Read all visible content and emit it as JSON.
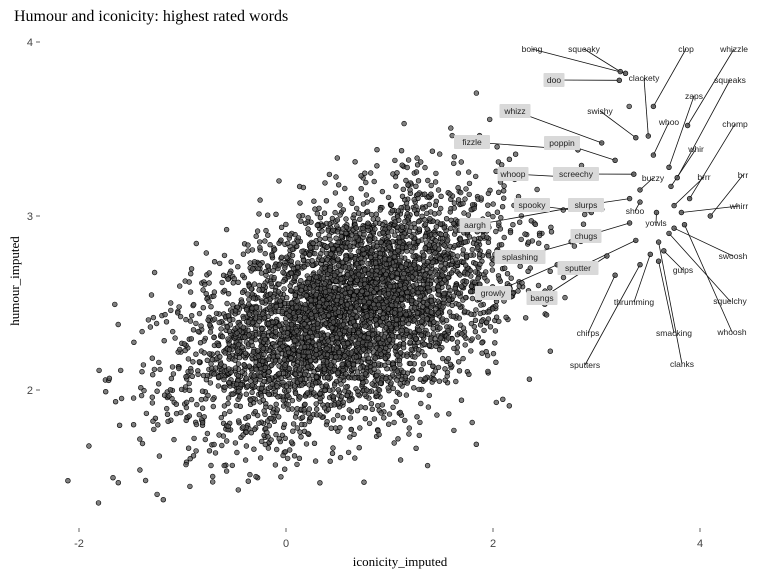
{
  "chart_data": {
    "type": "scatter",
    "title": "Humour and iconicity: highest rated words",
    "xlabel": "iconicity_imputed",
    "ylabel": "humour_imputed",
    "xlim": [
      -2.3,
      4.6
    ],
    "ylim": [
      1.25,
      4.1
    ],
    "xticks": [
      -2,
      0,
      2,
      4
    ],
    "yticks": [
      2,
      3,
      4
    ],
    "grid": false,
    "point_color": "#555555",
    "point_edge": "#000000",
    "bulk_cloud": {
      "center": [
        0.6,
        2.45
      ],
      "sd": [
        0.75,
        0.33
      ],
      "correlation": 0.45,
      "n_points": 4800
    },
    "highlighted_words": [
      {
        "word": "boing",
        "x": 3.28,
        "y": 3.82,
        "boxed": false
      },
      {
        "word": "squeaky",
        "x": 3.23,
        "y": 3.83,
        "boxed": false
      },
      {
        "word": "clop",
        "x": 3.55,
        "y": 3.63,
        "boxed": false
      },
      {
        "word": "whizzle",
        "x": 3.88,
        "y": 3.52,
        "boxed": false
      },
      {
        "word": "doo",
        "x": 3.22,
        "y": 3.78,
        "boxed": true
      },
      {
        "word": "clackety",
        "x": 3.5,
        "y": 3.46,
        "boxed": false
      },
      {
        "word": "squeaks",
        "x": 3.78,
        "y": 3.22,
        "boxed": false
      },
      {
        "word": "zaps",
        "x": 3.7,
        "y": 3.28,
        "boxed": false
      },
      {
        "word": "swishy",
        "x": 3.38,
        "y": 3.45,
        "boxed": false
      },
      {
        "word": "whizz",
        "x": 3.05,
        "y": 3.42,
        "boxed": true
      },
      {
        "word": "whoo",
        "x": 3.55,
        "y": 3.35,
        "boxed": false
      },
      {
        "word": "chomp",
        "x": 3.9,
        "y": 3.1,
        "boxed": false
      },
      {
        "word": "fizzle",
        "x": 2.82,
        "y": 3.38,
        "boxed": true
      },
      {
        "word": "poppin",
        "x": 3.18,
        "y": 3.32,
        "boxed": true
      },
      {
        "word": "whir",
        "x": 3.72,
        "y": 3.17,
        "boxed": false
      },
      {
        "word": "brr",
        "x": 4.1,
        "y": 3.0,
        "boxed": false
      },
      {
        "word": "screechy",
        "x": 3.36,
        "y": 3.24,
        "boxed": true
      },
      {
        "word": "whoop",
        "x": 2.85,
        "y": 3.22,
        "boxed": true
      },
      {
        "word": "buzzy",
        "x": 3.42,
        "y": 3.15,
        "boxed": false
      },
      {
        "word": "brrr",
        "x": 3.75,
        "y": 3.06,
        "boxed": false
      },
      {
        "word": "slurps",
        "x": 3.32,
        "y": 3.1,
        "boxed": true
      },
      {
        "word": "spooky",
        "x": 2.95,
        "y": 3.02,
        "boxed": true
      },
      {
        "word": "whirr",
        "x": 3.82,
        "y": 3.02,
        "boxed": false
      },
      {
        "word": "shoo",
        "x": 3.42,
        "y": 3.08,
        "boxed": false
      },
      {
        "word": "aargh",
        "x": 2.78,
        "y": 3.05,
        "boxed": true
      },
      {
        "word": "yowls",
        "x": 3.58,
        "y": 3.02,
        "boxed": false
      },
      {
        "word": "chugs",
        "x": 3.32,
        "y": 2.96,
        "boxed": true
      },
      {
        "word": "swoosh",
        "x": 3.75,
        "y": 2.93,
        "boxed": false
      },
      {
        "word": "splashing",
        "x": 2.9,
        "y": 2.87,
        "boxed": true
      },
      {
        "word": "sputter",
        "x": 3.38,
        "y": 2.86,
        "boxed": true
      },
      {
        "word": "gulps",
        "x": 3.65,
        "y": 2.8,
        "boxed": false
      },
      {
        "word": "growly",
        "x": 2.62,
        "y": 2.72,
        "boxed": true
      },
      {
        "word": "bangs",
        "x": 3.1,
        "y": 2.77,
        "boxed": true
      },
      {
        "word": "thrumming",
        "x": 3.52,
        "y": 2.78,
        "boxed": false
      },
      {
        "word": "squelchy",
        "x": 3.7,
        "y": 2.9,
        "boxed": false
      },
      {
        "word": "smacking",
        "x": 3.6,
        "y": 2.74,
        "boxed": false
      },
      {
        "word": "chirps",
        "x": 3.18,
        "y": 2.66,
        "boxed": false
      },
      {
        "word": "whoosh",
        "x": 3.85,
        "y": 2.95,
        "boxed": false
      },
      {
        "word": "sputters",
        "x": 3.42,
        "y": 2.72,
        "boxed": false
      },
      {
        "word": "clanks",
        "x": 3.6,
        "y": 2.85,
        "boxed": false
      }
    ]
  }
}
